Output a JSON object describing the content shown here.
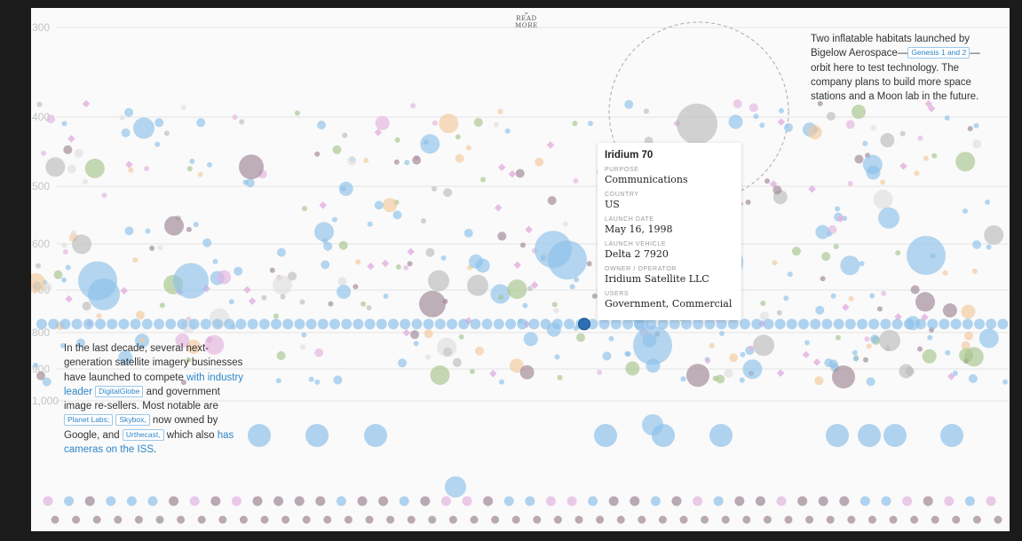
{
  "read_more": "READ MORE",
  "chart_data": {
    "type": "scatter",
    "title": "",
    "xlabel": "",
    "ylabel": "",
    "ylim": [
      300,
      1130
    ],
    "y_ticks": [
      {
        "value": 300,
        "label": "300"
      },
      {
        "value": 400,
        "label": "400"
      },
      {
        "value": 500,
        "label": "500"
      },
      {
        "value": 600,
        "label": "600"
      },
      {
        "value": 700,
        "label": "700"
      },
      {
        "value": 800,
        "label": "800"
      },
      {
        "value": 900,
        "label": "900"
      },
      {
        "value": 1000,
        "label": "1,000"
      }
    ],
    "y_tick_positions": [
      22,
      123,
      201,
      266,
      318,
      366,
      407,
      443
    ],
    "colors": {
      "blue": "#8ec1ea",
      "pink": "#e3b3df",
      "gray": "#bcbcbc",
      "orange": "#f3c99c",
      "green": "#a6c48c",
      "mauve": "#9e8593",
      "lightgray": "#dedede",
      "dot_dark": "#a38e9d",
      "selected": "#2d6fb3"
    },
    "highlighted_point": {
      "name": "Iridium 70",
      "altitude_km": 780,
      "purpose": "Communications",
      "country": "US",
      "launch_date": "May 16, 1998",
      "launch_vehicle": "Delta 2 7920",
      "operator": "Iridium Satellite LLC",
      "users": "Government, Commercial"
    }
  },
  "tooltip": {
    "title": "Iridium 70",
    "purpose_label": "PURPOSE",
    "purpose": "Communications",
    "country_label": "COUNTRY",
    "country": "US",
    "launch_date_label": "LAUNCH DATE",
    "launch_date": "May 16, 1998",
    "launch_vehicle_label": "LAUNCH VEHICLE",
    "launch_vehicle": "Delta 2 7920",
    "operator_label": "OWNER / OPERATOR",
    "operator": "Iridium Satellite LLC",
    "users_label": "USERS",
    "users": "Government, Commercial"
  },
  "annotation_right": {
    "text_a": "Two inflatable habitats launched by Bigelow Aerospace—",
    "tag": "Genesis 1 and 2",
    "text_b": "—orbit here to test technology. The company plans to build more space stations and a Moon lab in the future."
  },
  "annotation_left": {
    "text_a": "In the last decade, several next-generation satellite imagery businesses have launched to compete ",
    "link_a": "with industry leader",
    "tag_a": "DigitalGlobe",
    "text_b": " and government image re-sellers. Most notable are ",
    "tag_b": "Planet Labs;",
    "tag_c": "Skybox,",
    "text_c": " now owned by Google, and ",
    "tag_d": "Urthecast,",
    "text_d": " which also ",
    "link_b": "has cameras on the ISS",
    "text_e": "."
  }
}
